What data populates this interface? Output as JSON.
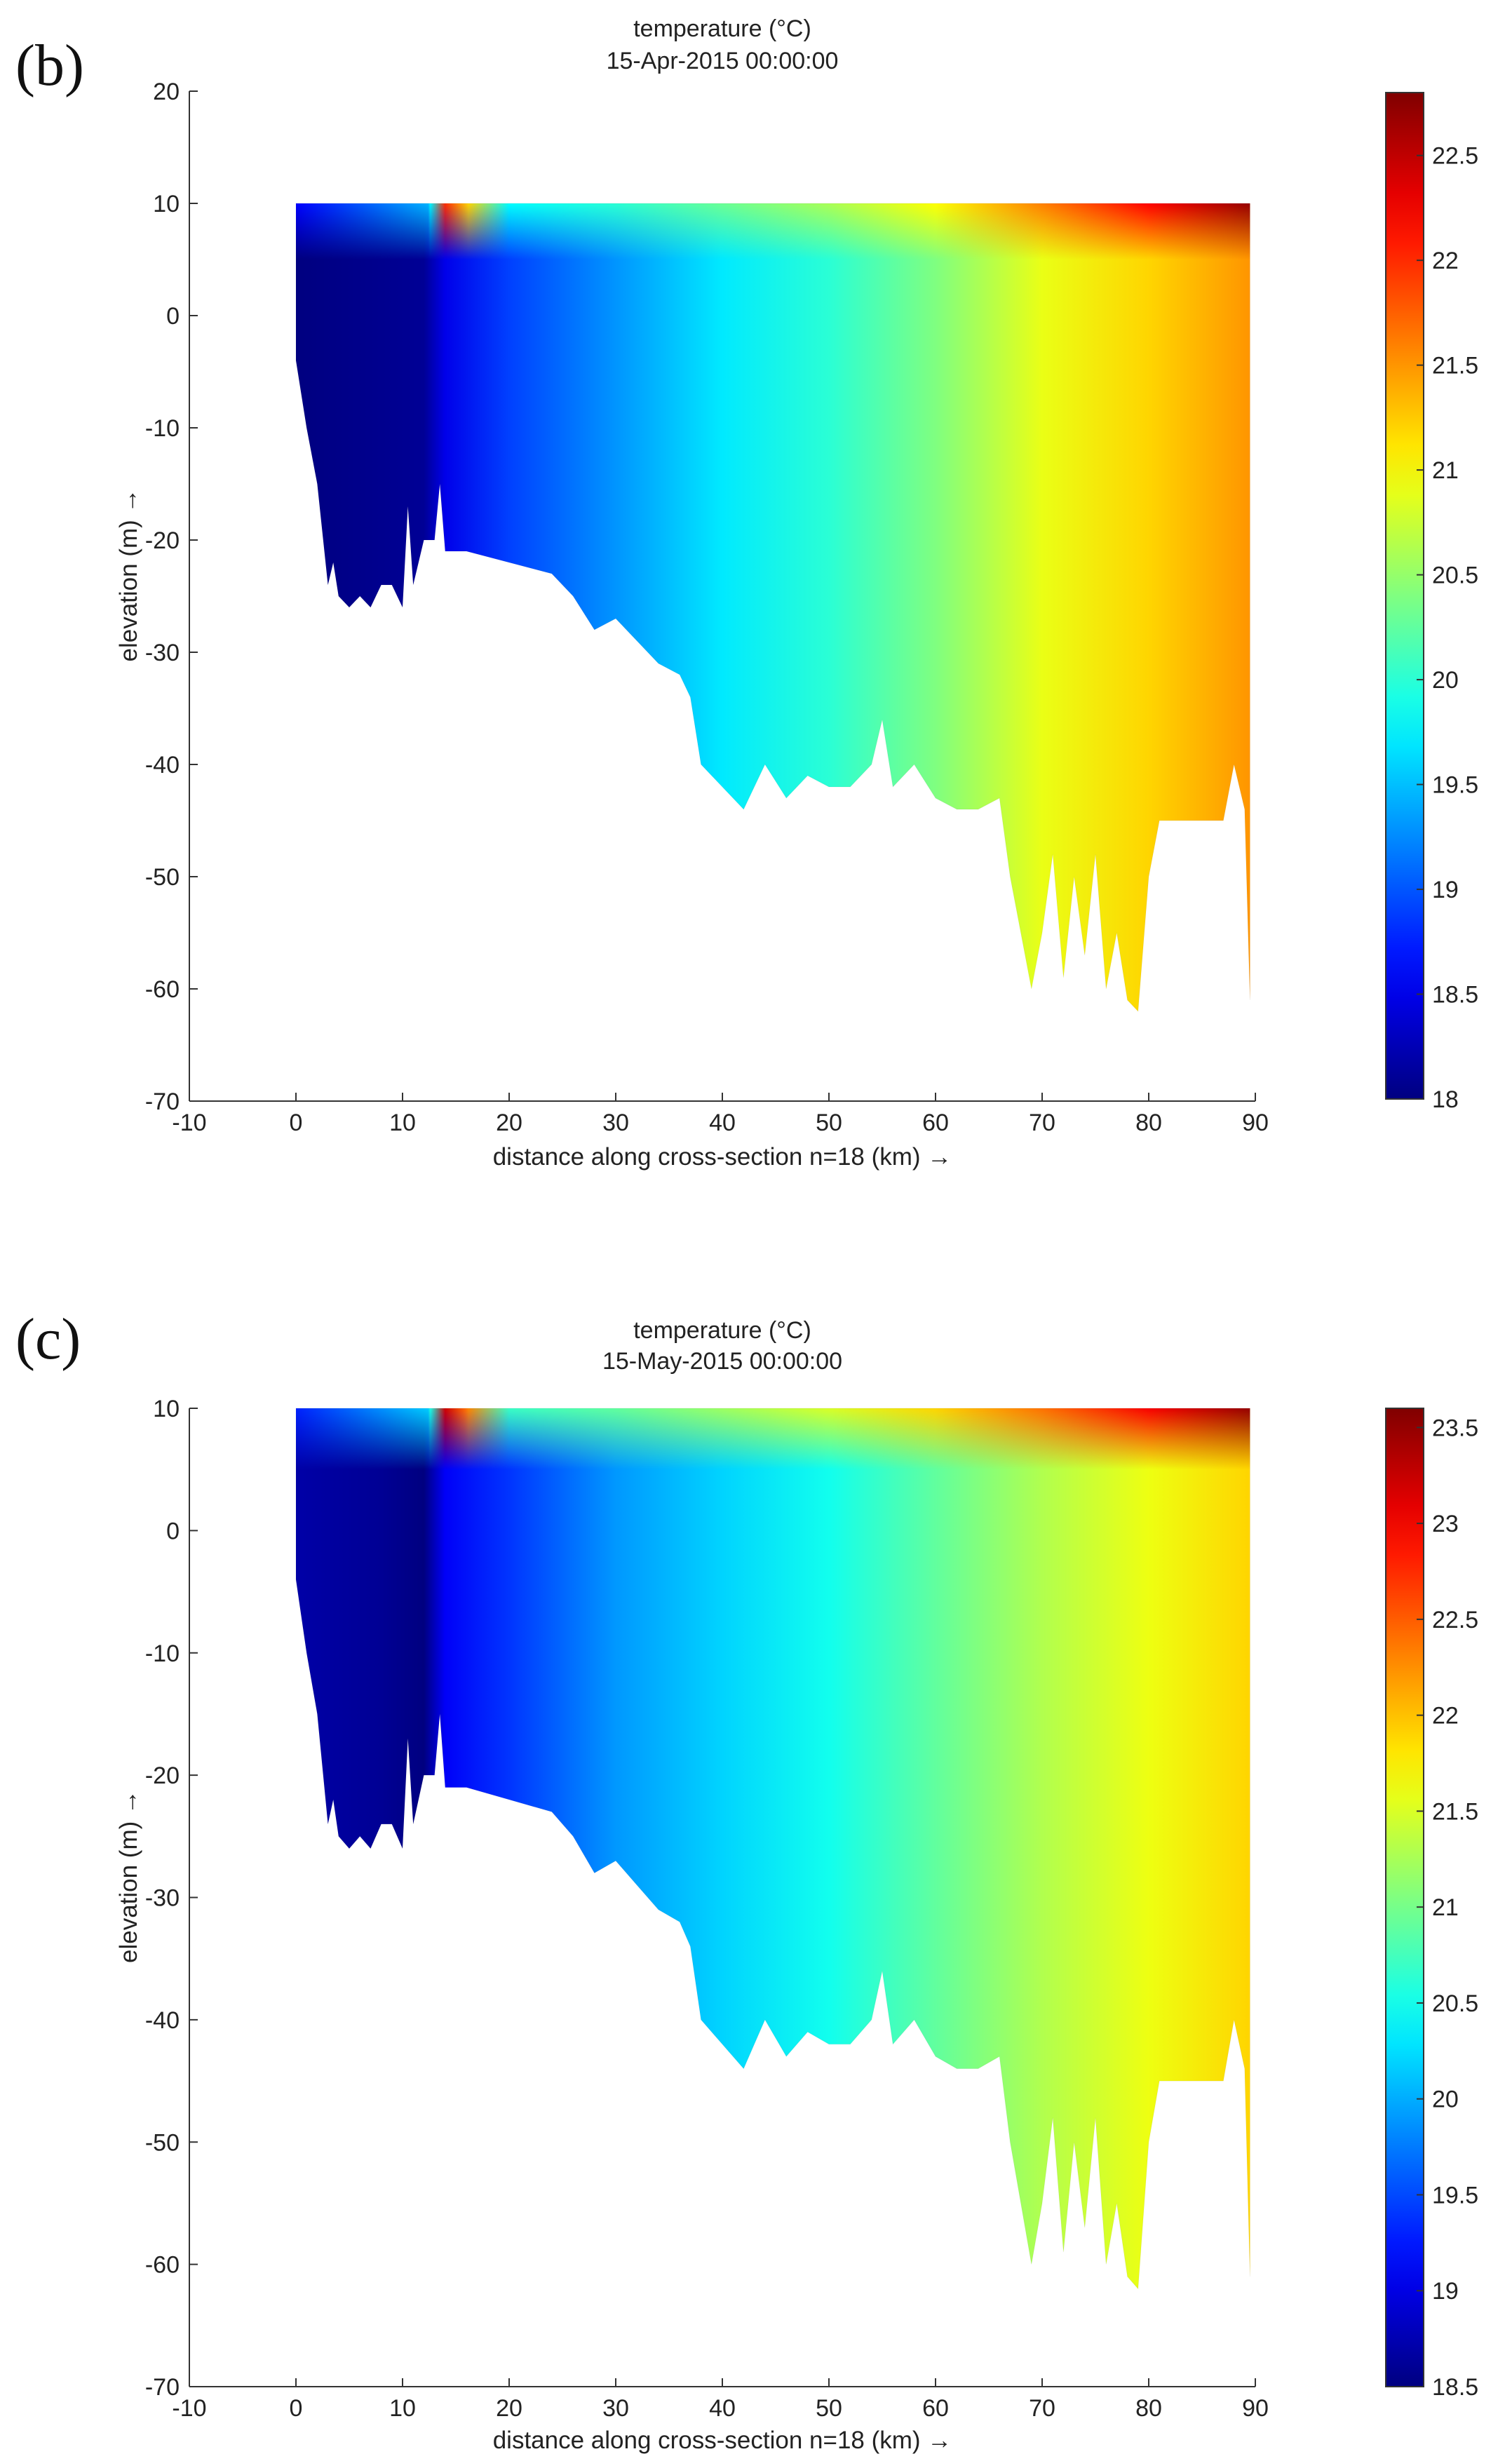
{
  "chart_data": [
    {
      "panel_label": "(b)",
      "type": "heatmap",
      "title": "temperature (°C)",
      "subtitle": "15-Apr-2015 00:00:00",
      "xlabel": "distance along cross-section n=18 (km) →",
      "ylabel": "elevation (m) →",
      "xlim": [
        -10,
        90
      ],
      "ylim": [
        -70,
        20
      ],
      "x_ticks": [
        "-10",
        "0",
        "10",
        "20",
        "30",
        "40",
        "50",
        "60",
        "70",
        "80",
        "90"
      ],
      "y_ticks": [
        "20",
        "10",
        "0",
        "-10",
        "-20",
        "-30",
        "-40",
        "-50",
        "-60",
        "-70"
      ],
      "colorbar": {
        "min": 18,
        "max": 22.8,
        "ticks": [
          "22.5",
          "22",
          "21.5",
          "21",
          "20.5",
          "20",
          "19.5",
          "19",
          "18.5",
          "18"
        ]
      },
      "surface_elevation": 10,
      "bottom_profile": {
        "x": [
          0,
          1,
          2,
          3,
          3.5,
          4,
          5,
          6,
          7,
          8,
          9,
          10,
          10.5,
          11,
          12,
          13,
          13.5,
          14,
          16,
          20,
          24,
          26,
          28,
          30,
          32,
          34,
          36,
          37,
          38,
          40,
          42,
          44,
          46,
          48,
          50,
          52,
          54,
          55,
          56,
          58,
          60,
          62,
          64,
          66,
          67,
          68,
          69,
          70,
          71,
          72,
          73,
          74,
          75,
          76,
          77,
          78,
          79,
          80,
          81,
          84,
          87,
          88,
          89,
          89.5
        ],
        "elevation": [
          -4,
          -10,
          -15,
          -24,
          -22,
          -25,
          -26,
          -25,
          -26,
          -24,
          -24,
          -26,
          -17,
          -24,
          -20,
          -20,
          -15,
          -21,
          -21,
          -22,
          -23,
          -25,
          -28,
          -27,
          -29,
          -31,
          -32,
          -34,
          -40,
          -42,
          -44,
          -40,
          -43,
          -41,
          -42,
          -42,
          -40,
          -36,
          -42,
          -40,
          -43,
          -44,
          -44,
          -43,
          -50,
          -55,
          -60,
          -55,
          -48,
          -59,
          -50,
          -57,
          -48,
          -60,
          -55,
          -61,
          -62,
          -50,
          -45,
          -45,
          -45,
          -40,
          -44,
          -61
        ],
        "hot_surface_band": [
          12.5,
          16
        ]
      },
      "temperature_along_section": {
        "x": [
          0,
          12,
          14,
          20,
          30,
          40,
          50,
          60,
          70,
          80,
          90
        ],
        "values": [
          18.0,
          18.1,
          18.5,
          18.9,
          19.3,
          19.7,
          20.0,
          20.4,
          20.9,
          21.2,
          21.5
        ],
        "surface_values": [
          18.6,
          18.8,
          22.0,
          19.8,
          20.0,
          20.3,
          20.6,
          21.0,
          21.6,
          22.2,
          22.7
        ]
      }
    },
    {
      "panel_label": "(c)",
      "type": "heatmap",
      "title": "temperature (°C)",
      "subtitle": "15-May-2015 00:00:00",
      "xlabel": "distance along cross-section n=18 (km) →",
      "ylabel": "elevation (m) →",
      "xlim": [
        -10,
        90
      ],
      "ylim": [
        -70,
        10
      ],
      "x_ticks": [
        "-10",
        "0",
        "10",
        "20",
        "30",
        "40",
        "50",
        "60",
        "70",
        "80",
        "90"
      ],
      "y_ticks": [
        "10",
        "0",
        "-10",
        "-20",
        "-30",
        "-40",
        "-50",
        "-60",
        "-70"
      ],
      "colorbar": {
        "min": 18.5,
        "max": 23.6,
        "ticks": [
          "23.5",
          "23",
          "22.5",
          "22",
          "21.5",
          "21",
          "20.5",
          "20",
          "19.5",
          "19",
          "18.5"
        ]
      },
      "surface_elevation": 10,
      "bottom_profile": {
        "x": [
          0,
          1,
          2,
          3,
          3.5,
          4,
          5,
          6,
          7,
          8,
          9,
          10,
          10.5,
          11,
          12,
          13,
          13.5,
          14,
          16,
          20,
          24,
          26,
          28,
          30,
          32,
          34,
          36,
          37,
          38,
          40,
          42,
          44,
          46,
          48,
          50,
          52,
          54,
          55,
          56,
          58,
          60,
          62,
          64,
          66,
          67,
          68,
          69,
          70,
          71,
          72,
          73,
          74,
          75,
          76,
          77,
          78,
          79,
          80,
          81,
          84,
          87,
          88,
          89,
          89.5
        ],
        "elevation": [
          -4,
          -10,
          -15,
          -24,
          -22,
          -25,
          -26,
          -25,
          -26,
          -24,
          -24,
          -26,
          -17,
          -24,
          -20,
          -20,
          -15,
          -21,
          -21,
          -22,
          -23,
          -25,
          -28,
          -27,
          -29,
          -31,
          -32,
          -34,
          -40,
          -42,
          -44,
          -40,
          -43,
          -41,
          -42,
          -42,
          -40,
          -36,
          -42,
          -40,
          -43,
          -44,
          -44,
          -43,
          -50,
          -55,
          -60,
          -55,
          -48,
          -59,
          -50,
          -57,
          -48,
          -60,
          -55,
          -61,
          -62,
          -50,
          -45,
          -45,
          -45,
          -40,
          -44,
          -61
        ],
        "hot_surface_band": [
          12.5,
          16
        ]
      },
      "temperature_along_section": {
        "x": [
          0,
          8,
          12,
          14,
          20,
          30,
          40,
          50,
          60,
          70,
          80,
          90
        ],
        "values": [
          18.7,
          18.6,
          18.5,
          19.1,
          19.4,
          19.9,
          20.2,
          20.5,
          20.9,
          21.3,
          21.6,
          21.9
        ],
        "surface_values": [
          19.3,
          19.3,
          19.4,
          23.2,
          20.7,
          20.9,
          21.2,
          21.5,
          21.9,
          22.4,
          23.0,
          23.5
        ]
      }
    }
  ]
}
